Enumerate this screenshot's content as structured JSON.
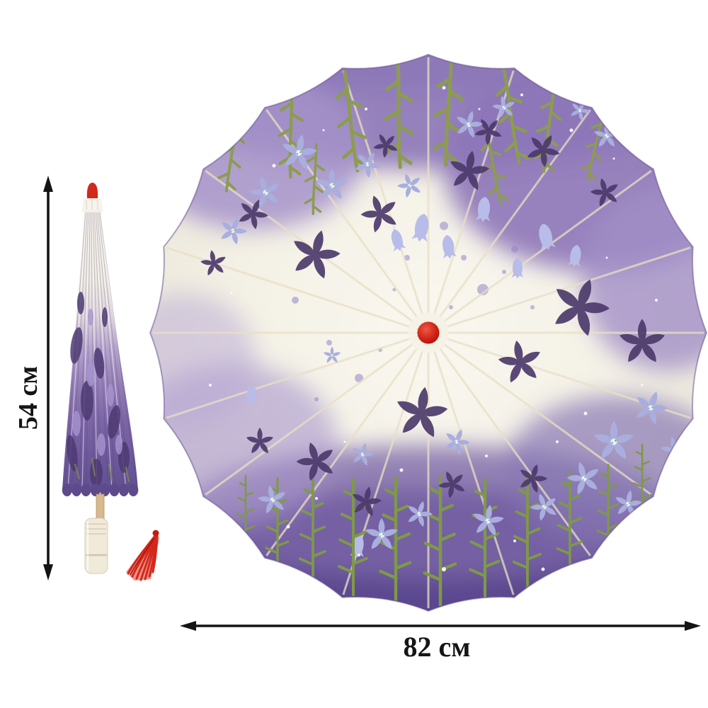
{
  "image": {
    "subject": "oil-paper parasol with purple flower print",
    "views": [
      "closed parasol with red tassel",
      "open parasol canopy"
    ]
  },
  "dimensions": {
    "height_label": "54 см",
    "width_label": "82 см"
  },
  "artwork": {
    "palette": {
      "background": "#ffffff",
      "arrow_color": "#141414",
      "red_accent": "#d3281c",
      "canopy_cream": "#f5f3e9",
      "watercolor_lavender": "#b5a3d8",
      "watercolor_purple": "#8a76b5",
      "watercolor_deep_purple": "#5f4c92",
      "flower_silhouette": "#4c3a6b",
      "flower_periwinkle": "#a9aede",
      "foliage_green": "#8c9c4f",
      "rib_cream": "#e9dfc4",
      "wood_tan": "#d8b88d",
      "handle_ivory": "#f0ead9"
    }
  }
}
